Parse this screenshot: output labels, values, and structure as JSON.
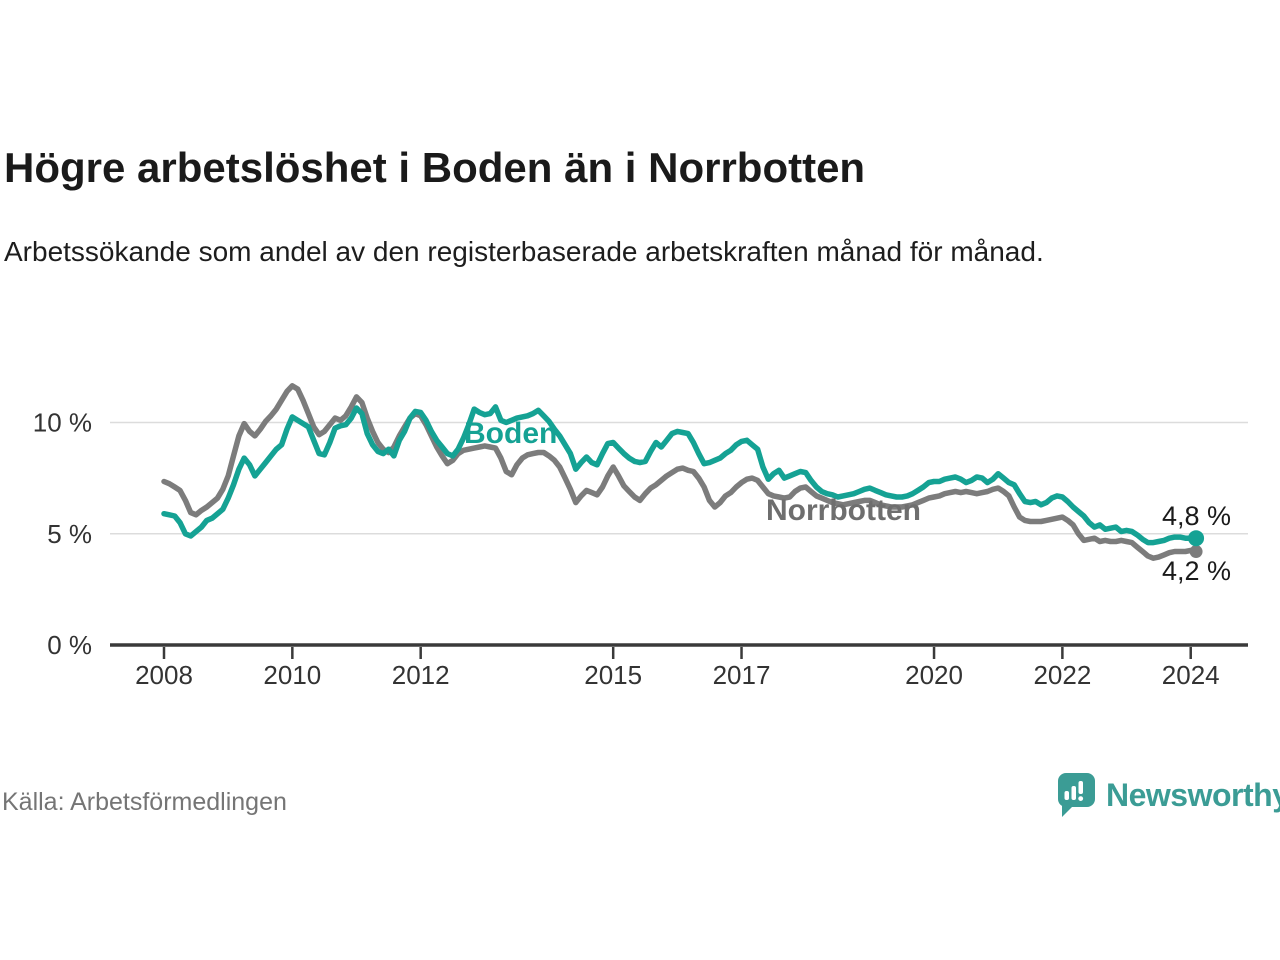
{
  "header": {
    "title": "Högre arbetslöshet i Boden än i Norrbotten",
    "subtitle": "Arbetssökande som andel av den registerbaserade arbetskraften månad för månad."
  },
  "footer": {
    "source": "Källa: Arbetsförmedlingen",
    "brand": "Newsworthy"
  },
  "colors": {
    "boden": "#15a294",
    "norrbotten": "#7c7c7c",
    "axis": "#3a3a3a",
    "grid": "#dcdcdc",
    "tick_label": "#333333",
    "logo": "#3b9c95"
  },
  "chart_data": {
    "type": "line",
    "unit": "%",
    "grid": "horizontal-only",
    "legend_position": "inline-labels",
    "x_range_years": [
      2008.0,
      2024.08
    ],
    "ylim": [
      0,
      12.5
    ],
    "x_ticks": [
      {
        "value": 2008,
        "label": "2008"
      },
      {
        "value": 2010,
        "label": "2010"
      },
      {
        "value": 2012,
        "label": "2012"
      },
      {
        "value": 2015,
        "label": "2015"
      },
      {
        "value": 2017,
        "label": "2017"
      },
      {
        "value": 2020,
        "label": "2020"
      },
      {
        "value": 2022,
        "label": "2022"
      },
      {
        "value": 2024,
        "label": "2024"
      }
    ],
    "y_ticks": [
      {
        "value": 0,
        "label": "0 %"
      },
      {
        "value": 5,
        "label": "5 %"
      },
      {
        "value": 10,
        "label": "10 %"
      }
    ],
    "series": [
      {
        "name": "Norrbotten",
        "color": "#7c7c7c",
        "end_label": "4,2 %",
        "end_value": 4.2,
        "dot_radius": 6.5,
        "x_start": 2008.0,
        "x_step_years": 0.083333,
        "values": [
          7.35,
          7.25,
          7.1,
          6.95,
          6.5,
          5.95,
          5.85,
          6.05,
          6.2,
          6.4,
          6.6,
          7.0,
          7.6,
          8.5,
          9.4,
          9.95,
          9.6,
          9.4,
          9.7,
          10.05,
          10.3,
          10.6,
          11.0,
          11.4,
          11.65,
          11.5,
          11.0,
          10.4,
          9.8,
          9.45,
          9.6,
          9.9,
          10.2,
          10.1,
          10.3,
          10.7,
          11.15,
          10.9,
          10.2,
          9.6,
          9.1,
          8.8,
          8.65,
          8.9,
          9.4,
          9.8,
          10.2,
          10.4,
          10.3,
          9.9,
          9.4,
          8.9,
          8.5,
          8.15,
          8.3,
          8.6,
          8.75,
          8.8,
          8.85,
          8.9,
          8.95,
          8.9,
          8.85,
          8.4,
          7.8,
          7.65,
          8.1,
          8.4,
          8.55,
          8.6,
          8.65,
          8.65,
          8.5,
          8.3,
          8.0,
          7.5,
          7.0,
          6.4,
          6.7,
          6.95,
          6.85,
          6.75,
          7.1,
          7.6,
          8.0,
          7.6,
          7.15,
          6.9,
          6.65,
          6.5,
          6.8,
          7.05,
          7.2,
          7.4,
          7.6,
          7.75,
          7.9,
          7.95,
          7.85,
          7.8,
          7.5,
          7.1,
          6.5,
          6.2,
          6.4,
          6.7,
          6.85,
          7.1,
          7.3,
          7.45,
          7.5,
          7.4,
          7.1,
          6.8,
          6.7,
          6.65,
          6.6,
          6.65,
          6.9,
          7.05,
          7.1,
          6.9,
          6.7,
          6.6,
          6.5,
          6.4,
          6.35,
          6.3,
          6.35,
          6.4,
          6.45,
          6.5,
          6.5,
          6.4,
          6.3,
          6.25,
          6.2,
          6.2,
          6.2,
          6.25,
          6.3,
          6.4,
          6.5,
          6.6,
          6.65,
          6.7,
          6.8,
          6.85,
          6.9,
          6.85,
          6.9,
          6.85,
          6.8,
          6.85,
          6.9,
          7.0,
          7.05,
          6.9,
          6.7,
          6.2,
          5.75,
          5.6,
          5.55,
          5.55,
          5.55,
          5.6,
          5.65,
          5.7,
          5.75,
          5.6,
          5.4,
          5.0,
          4.7,
          4.75,
          4.8,
          4.65,
          4.7,
          4.65,
          4.65,
          4.7,
          4.65,
          4.6,
          4.4,
          4.2,
          4.0,
          3.9,
          3.95,
          4.05,
          4.15,
          4.2,
          4.2,
          4.2,
          4.25,
          4.2
        ]
      },
      {
        "name": "Boden",
        "color": "#15a294",
        "end_label": "4,8 %",
        "end_value": 4.8,
        "dot_radius": 8,
        "x_start": 2008.0,
        "x_step_years": 0.083333,
        "values": [
          5.9,
          5.85,
          5.8,
          5.5,
          5.0,
          4.9,
          5.1,
          5.3,
          5.6,
          5.7,
          5.9,
          6.1,
          6.6,
          7.2,
          7.9,
          8.4,
          8.1,
          7.6,
          7.9,
          8.2,
          8.5,
          8.8,
          9.0,
          9.7,
          10.25,
          10.1,
          9.95,
          9.8,
          9.2,
          8.6,
          8.55,
          9.1,
          9.75,
          9.85,
          9.9,
          10.2,
          10.65,
          10.4,
          9.5,
          9.0,
          8.7,
          8.6,
          8.8,
          8.5,
          9.2,
          9.6,
          10.2,
          10.5,
          10.45,
          10.1,
          9.6,
          9.2,
          8.9,
          8.6,
          8.5,
          8.8,
          9.3,
          9.9,
          10.6,
          10.45,
          10.35,
          10.4,
          10.7,
          10.1,
          10.0,
          10.1,
          10.2,
          10.25,
          10.3,
          10.4,
          10.55,
          10.3,
          10.05,
          9.7,
          9.4,
          9.0,
          8.6,
          7.9,
          8.2,
          8.45,
          8.2,
          8.1,
          8.6,
          9.05,
          9.1,
          8.85,
          8.6,
          8.4,
          8.25,
          8.2,
          8.25,
          8.7,
          9.1,
          8.9,
          9.2,
          9.5,
          9.6,
          9.55,
          9.5,
          9.1,
          8.6,
          8.15,
          8.2,
          8.3,
          8.4,
          8.6,
          8.75,
          9.0,
          9.15,
          9.2,
          9.0,
          8.8,
          8.0,
          7.45,
          7.7,
          7.85,
          7.5,
          7.6,
          7.7,
          7.8,
          7.75,
          7.4,
          7.1,
          6.9,
          6.8,
          6.75,
          6.65,
          6.7,
          6.75,
          6.8,
          6.9,
          7.0,
          7.05,
          6.95,
          6.85,
          6.75,
          6.7,
          6.65,
          6.65,
          6.7,
          6.8,
          6.95,
          7.1,
          7.3,
          7.35,
          7.35,
          7.45,
          7.5,
          7.55,
          7.45,
          7.3,
          7.4,
          7.55,
          7.5,
          7.3,
          7.45,
          7.7,
          7.5,
          7.3,
          7.2,
          6.8,
          6.45,
          6.4,
          6.45,
          6.3,
          6.4,
          6.6,
          6.7,
          6.65,
          6.45,
          6.2,
          6.0,
          5.8,
          5.5,
          5.3,
          5.4,
          5.2,
          5.25,
          5.3,
          5.1,
          5.15,
          5.1,
          4.95,
          4.75,
          4.6,
          4.6,
          4.65,
          4.7,
          4.8,
          4.85,
          4.85,
          4.8,
          4.8,
          4.8
        ]
      }
    ]
  }
}
